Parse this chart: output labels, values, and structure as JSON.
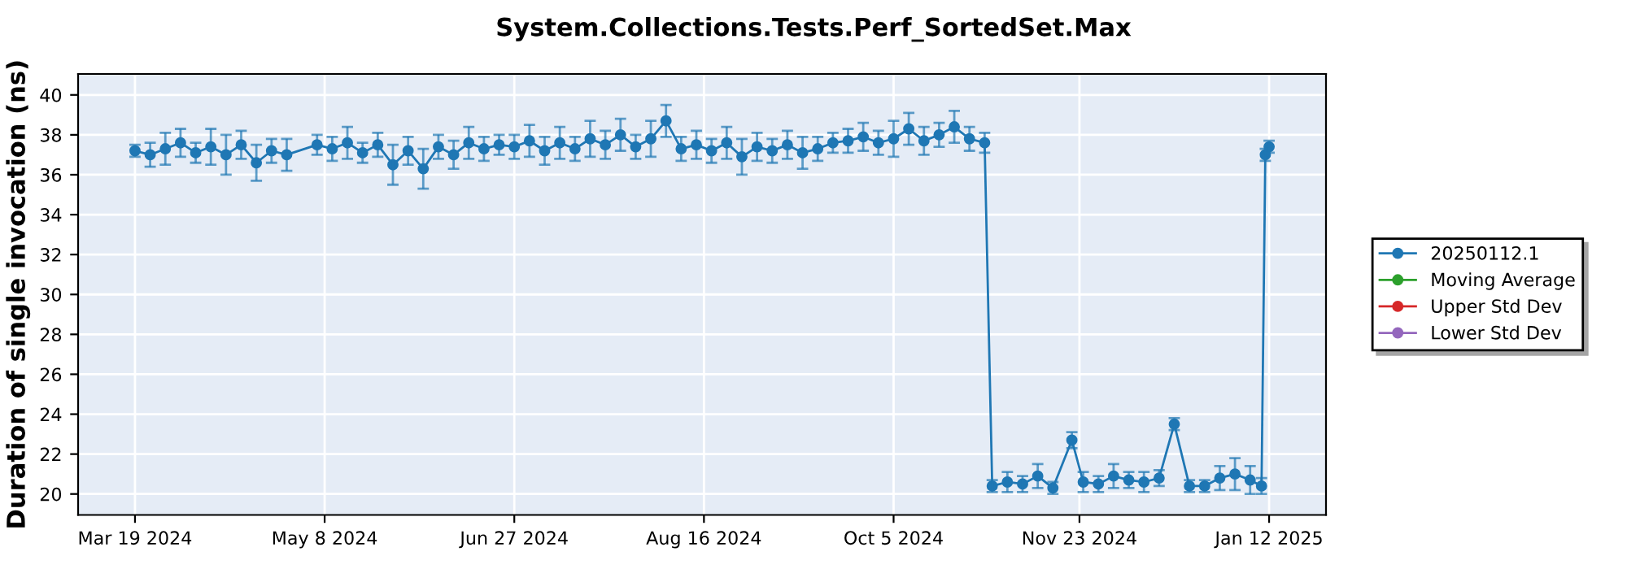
{
  "chart_data": {
    "type": "line",
    "title": "System.Collections.Tests.Perf_SortedSet.Max",
    "ylabel": "Duration of single invocation (ns)",
    "xlim": [
      "2024-03-04",
      "2025-01-27"
    ],
    "xticks": [
      {
        "value": "2024-03-19",
        "label": "Mar 19 2024"
      },
      {
        "value": "2024-05-08",
        "label": "May 8 2024"
      },
      {
        "value": "2024-06-27",
        "label": "Jun 27 2024"
      },
      {
        "value": "2024-08-16",
        "label": "Aug 16 2024"
      },
      {
        "value": "2024-10-05",
        "label": "Oct 5 2024"
      },
      {
        "value": "2024-11-23",
        "label": "Nov 23 2024"
      },
      {
        "value": "2025-01-12",
        "label": "Jan 12 2025"
      }
    ],
    "ylim": [
      18.95,
      41.05
    ],
    "yticks": [
      20,
      22,
      24,
      26,
      28,
      30,
      32,
      34,
      36,
      38,
      40
    ],
    "grid": true,
    "legend": "right",
    "marker": "circle",
    "line_style": "solid",
    "series": [
      {
        "name": "20250112.1",
        "color": "#1f77b4",
        "x": [
          "2024-03-19",
          "2024-03-23",
          "2024-03-27",
          "2024-03-31",
          "2024-04-04",
          "2024-04-08",
          "2024-04-12",
          "2024-04-16",
          "2024-04-20",
          "2024-04-24",
          "2024-04-28",
          "2024-05-06",
          "2024-05-10",
          "2024-05-14",
          "2024-05-18",
          "2024-05-22",
          "2024-05-26",
          "2024-05-30",
          "2024-06-03",
          "2024-06-07",
          "2024-06-11",
          "2024-06-15",
          "2024-06-19",
          "2024-06-23",
          "2024-06-27",
          "2024-07-01",
          "2024-07-05",
          "2024-07-09",
          "2024-07-13",
          "2024-07-17",
          "2024-07-21",
          "2024-07-25",
          "2024-07-29",
          "2024-08-02",
          "2024-08-06",
          "2024-08-10",
          "2024-08-14",
          "2024-08-18",
          "2024-08-22",
          "2024-08-26",
          "2024-08-30",
          "2024-09-03",
          "2024-09-07",
          "2024-09-11",
          "2024-09-15",
          "2024-09-19",
          "2024-09-23",
          "2024-09-27",
          "2024-10-01",
          "2024-10-05",
          "2024-10-09",
          "2024-10-13",
          "2024-10-17",
          "2024-10-21",
          "2024-10-25",
          "2024-10-29",
          "2024-10-31",
          "2024-11-04",
          "2024-11-08",
          "2024-11-12",
          "2024-11-16",
          "2024-11-21",
          "2024-11-24",
          "2024-11-28",
          "2024-12-02",
          "2024-12-06",
          "2024-12-10",
          "2024-12-14",
          "2024-12-18",
          "2024-12-22",
          "2024-12-26",
          "2024-12-30",
          "2025-01-03",
          "2025-01-07",
          "2025-01-10",
          "2025-01-11",
          "2025-01-12"
        ],
        "values": [
          37.2,
          37.0,
          37.3,
          37.6,
          37.1,
          37.4,
          37.0,
          37.5,
          36.6,
          37.2,
          37.0,
          37.5,
          37.3,
          37.6,
          37.1,
          37.5,
          36.5,
          37.2,
          36.3,
          37.4,
          37.0,
          37.6,
          37.3,
          37.5,
          37.4,
          37.7,
          37.2,
          37.6,
          37.3,
          37.8,
          37.5,
          38.0,
          37.4,
          37.8,
          38.7,
          37.3,
          37.5,
          37.2,
          37.6,
          36.9,
          37.4,
          37.2,
          37.5,
          37.1,
          37.3,
          37.6,
          37.7,
          37.9,
          37.6,
          37.8,
          38.3,
          37.7,
          38.0,
          38.4,
          37.8,
          37.6,
          20.4,
          20.6,
          20.5,
          20.9,
          20.3,
          22.7,
          20.6,
          20.5,
          20.9,
          20.7,
          20.6,
          20.8,
          23.5,
          20.4,
          20.4,
          20.8,
          21.0,
          20.7,
          20.4,
          37.0,
          37.4
        ],
        "errors": [
          0.3,
          0.6,
          0.8,
          0.7,
          0.5,
          0.9,
          1.0,
          0.7,
          0.9,
          0.6,
          0.8,
          0.5,
          0.6,
          0.8,
          0.5,
          0.6,
          1.0,
          0.7,
          1.0,
          0.6,
          0.7,
          0.8,
          0.6,
          0.5,
          0.6,
          0.8,
          0.7,
          0.8,
          0.6,
          0.9,
          0.7,
          0.8,
          0.6,
          0.9,
          0.8,
          0.6,
          0.7,
          0.6,
          0.8,
          0.9,
          0.7,
          0.6,
          0.7,
          0.8,
          0.6,
          0.5,
          0.6,
          0.7,
          0.6,
          0.9,
          0.8,
          0.7,
          0.6,
          0.8,
          0.6,
          0.5,
          0.3,
          0.5,
          0.4,
          0.6,
          0.3,
          0.4,
          0.5,
          0.4,
          0.6,
          0.4,
          0.5,
          0.4,
          0.3,
          0.3,
          0.3,
          0.6,
          0.8,
          0.7,
          0.4,
          0.3,
          0.3
        ]
      },
      {
        "name": "Moving Average",
        "color": "#2ca02c"
      },
      {
        "name": "Upper Std Dev",
        "color": "#d62728"
      },
      {
        "name": "Lower Std Dev",
        "color": "#9467bd"
      }
    ]
  }
}
